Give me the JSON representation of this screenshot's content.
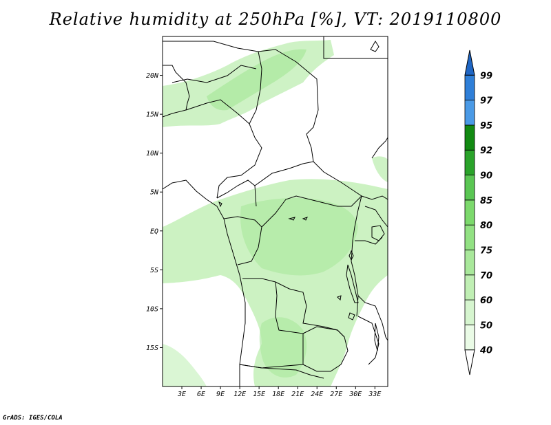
{
  "title": "Relative humidity at 250hPa [%], VT: 2019110800",
  "footer": "GrADS: IGES/COLA",
  "chart_data": {
    "type": "heatmap",
    "variable": "Relative humidity",
    "level": "250hPa",
    "units": "%",
    "valid_time": "2019110800",
    "lon_range": [
      0,
      35
    ],
    "lat_range": [
      -20,
      25
    ],
    "xticks": [
      "3E",
      "6E",
      "9E",
      "12E",
      "15E",
      "18E",
      "21E",
      "24E",
      "27E",
      "30E",
      "33E"
    ],
    "xtick_values": [
      3,
      6,
      9,
      12,
      15,
      18,
      21,
      24,
      27,
      30,
      33
    ],
    "yticks": [
      "20N",
      "15N",
      "10N",
      "5N",
      "EQ",
      "5S",
      "10S",
      "15S"
    ],
    "ytick_values": [
      20,
      15,
      10,
      5,
      0,
      -5,
      -10,
      -15
    ],
    "colorbar": {
      "levels": [
        40,
        50,
        60,
        70,
        75,
        80,
        85,
        90,
        92,
        95,
        97,
        99
      ],
      "colors": [
        "#ffffff",
        "#eafbe6",
        "#d6f5cf",
        "#c0efb4",
        "#a9e89b",
        "#92e183",
        "#7cd96c",
        "#5ac653",
        "#2aa32a",
        "#128a12",
        "#4a9ae6",
        "#2f7fd8",
        "#1f66c4"
      ]
    }
  }
}
